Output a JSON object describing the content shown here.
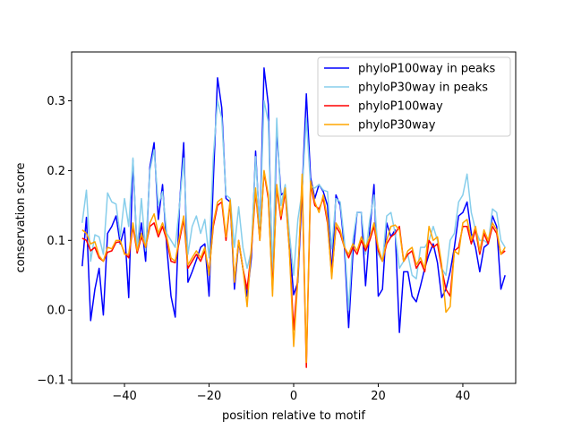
{
  "chart_data": {
    "type": "line",
    "title": "",
    "xlabel": "position relative to motif",
    "ylabel": "conservation score",
    "xlim": [
      -52.5,
      52.5
    ],
    "ylim": [
      -0.105,
      0.37
    ],
    "xticks": [
      -40,
      -20,
      0,
      20,
      40
    ],
    "yticks": [
      -0.1,
      0.0,
      0.1,
      0.2,
      0.3
    ],
    "xtick_labels": [
      "−40",
      "−20",
      "0",
      "20",
      "40"
    ],
    "ytick_labels": [
      "−0.1",
      "0.0",
      "0.1",
      "0.2",
      "0.3"
    ],
    "legend_position": "top-right",
    "x_start": -50,
    "series": [
      {
        "name": "phyloP100way in peaks",
        "color": "#0000ff",
        "values": [
          0.063,
          0.133,
          -0.015,
          0.03,
          0.06,
          -0.007,
          0.11,
          0.12,
          0.135,
          0.095,
          0.118,
          0.018,
          0.215,
          0.082,
          0.125,
          0.07,
          0.205,
          0.24,
          0.13,
          0.18,
          0.09,
          0.02,
          -0.01,
          0.15,
          0.24,
          0.04,
          0.055,
          0.072,
          0.09,
          0.095,
          0.02,
          0.185,
          0.333,
          0.29,
          0.16,
          0.155,
          0.03,
          0.098,
          0.06,
          0.02,
          0.075,
          0.228,
          0.115,
          0.347,
          0.295,
          0.03,
          0.26,
          0.165,
          0.17,
          0.095,
          0.022,
          0.04,
          0.17,
          0.31,
          0.19,
          0.16,
          0.18,
          0.17,
          0.15,
          0.055,
          0.165,
          0.15,
          0.09,
          -0.025,
          0.08,
          0.14,
          0.14,
          0.035,
          0.115,
          0.18,
          0.02,
          0.03,
          0.125,
          0.105,
          0.115,
          -0.032,
          0.055,
          0.055,
          0.02,
          0.012,
          0.035,
          0.06,
          0.08,
          0.095,
          0.068,
          0.018,
          0.03,
          0.055,
          0.09,
          0.135,
          0.14,
          0.155,
          0.11,
          0.09,
          0.055,
          0.09,
          0.095,
          0.135,
          0.12,
          0.03,
          0.05
        ]
      },
      {
        "name": "phyloP30way in peaks",
        "color": "#87ceeb",
        "values": [
          0.125,
          0.172,
          0.07,
          0.108,
          0.105,
          0.08,
          0.168,
          0.155,
          0.152,
          0.105,
          0.16,
          0.12,
          0.218,
          0.085,
          0.16,
          0.085,
          0.2,
          0.23,
          0.15,
          0.17,
          0.11,
          0.1,
          0.09,
          0.15,
          0.218,
          0.08,
          0.12,
          0.135,
          0.11,
          0.13,
          0.075,
          0.22,
          0.3,
          0.275,
          0.165,
          0.16,
          0.09,
          0.148,
          0.09,
          0.06,
          0.085,
          0.22,
          0.12,
          0.3,
          0.27,
          0.05,
          0.275,
          0.15,
          0.18,
          0.11,
          0.05,
          0.13,
          0.17,
          0.275,
          0.178,
          0.175,
          0.18,
          0.172,
          0.17,
          0.088,
          0.16,
          0.155,
          0.1,
          0.0,
          0.1,
          0.14,
          0.14,
          0.08,
          0.13,
          0.165,
          0.08,
          0.07,
          0.135,
          0.14,
          0.11,
          0.06,
          0.07,
          0.08,
          0.05,
          0.045,
          0.09,
          0.09,
          0.1,
          0.12,
          0.1,
          0.06,
          0.05,
          0.1,
          0.11,
          0.155,
          0.165,
          0.195,
          0.14,
          0.115,
          0.1,
          0.1,
          0.095,
          0.145,
          0.14,
          0.1,
          0.09
        ]
      },
      {
        "name": "phyloP100way",
        "color": "#ff0000",
        "values": [
          0.103,
          0.1,
          0.085,
          0.09,
          0.075,
          0.07,
          0.083,
          0.085,
          0.097,
          0.098,
          0.082,
          0.075,
          0.12,
          0.082,
          0.105,
          0.09,
          0.12,
          0.125,
          0.105,
          0.12,
          0.1,
          0.07,
          0.068,
          0.1,
          0.13,
          0.06,
          0.07,
          0.08,
          0.07,
          0.085,
          0.055,
          0.12,
          0.15,
          0.155,
          0.1,
          0.155,
          0.04,
          0.1,
          0.06,
          0.03,
          0.085,
          0.17,
          0.1,
          0.198,
          0.16,
          0.03,
          0.175,
          0.13,
          0.17,
          0.085,
          -0.028,
          0.05,
          0.185,
          -0.082,
          0.18,
          0.15,
          0.145,
          0.16,
          0.125,
          0.05,
          0.12,
          0.11,
          0.09,
          0.075,
          0.09,
          0.08,
          0.1,
          0.085,
          0.1,
          0.12,
          0.085,
          0.07,
          0.095,
          0.105,
          0.11,
          0.12,
          0.07,
          0.08,
          0.085,
          0.06,
          0.07,
          0.055,
          0.1,
          0.09,
          0.095,
          0.06,
          0.03,
          0.02,
          0.085,
          0.09,
          0.12,
          0.12,
          0.095,
          0.115,
          0.08,
          0.11,
          0.095,
          0.12,
          0.11,
          0.08,
          0.085
        ]
      },
      {
        "name": "phyloP30way",
        "color": "#ffa500",
        "values": [
          0.115,
          0.11,
          0.095,
          0.098,
          0.078,
          0.07,
          0.09,
          0.088,
          0.1,
          0.1,
          0.08,
          0.08,
          0.125,
          0.085,
          0.11,
          0.09,
          0.125,
          0.138,
          0.11,
          0.125,
          0.105,
          0.075,
          0.07,
          0.105,
          0.135,
          0.065,
          0.075,
          0.085,
          0.075,
          0.09,
          0.05,
          0.125,
          0.155,
          0.16,
          0.105,
          0.158,
          0.04,
          0.1,
          0.06,
          0.005,
          0.09,
          0.175,
          0.1,
          0.2,
          0.165,
          0.02,
          0.18,
          0.135,
          0.175,
          0.085,
          -0.052,
          0.045,
          0.195,
          -0.075,
          0.185,
          0.155,
          0.14,
          0.165,
          0.13,
          0.045,
          0.125,
          0.115,
          0.09,
          0.08,
          0.095,
          0.085,
          0.105,
          0.09,
          0.105,
          0.125,
          0.09,
          0.07,
          0.1,
          0.12,
          0.122,
          0.115,
          0.07,
          0.085,
          0.09,
          0.065,
          0.075,
          0.06,
          0.12,
          0.1,
          0.105,
          0.065,
          -0.003,
          0.005,
          0.085,
          0.08,
          0.125,
          0.13,
          0.1,
          0.12,
          0.085,
          0.115,
          0.1,
          0.125,
          0.115,
          0.08,
          0.09
        ]
      }
    ]
  }
}
